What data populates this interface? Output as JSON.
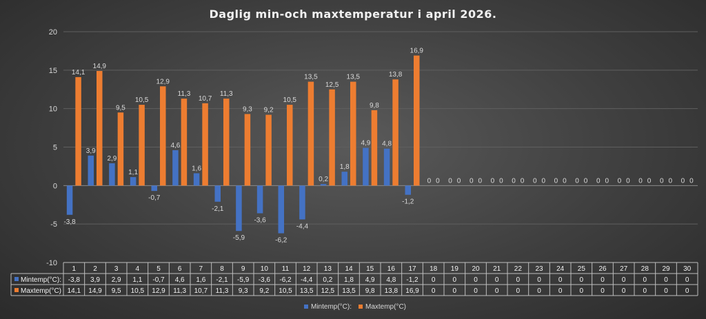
{
  "chart_data": {
    "type": "bar",
    "title": "Daglig min-och maxtemperatur i april 2026.",
    "categories": [
      "1",
      "2",
      "3",
      "4",
      "5",
      "6",
      "7",
      "8",
      "9",
      "10",
      "11",
      "12",
      "13",
      "14",
      "15",
      "16",
      "17",
      "18",
      "19",
      "20",
      "21",
      "22",
      "23",
      "24",
      "25",
      "26",
      "27",
      "28",
      "29",
      "30"
    ],
    "series": [
      {
        "name": "Mintemp(°C):",
        "color": "#4472c4",
        "values": [
          -3.8,
          3.9,
          2.9,
          1.1,
          -0.7,
          4.6,
          1.6,
          -2.1,
          -5.9,
          -3.6,
          -6.2,
          -4.4,
          0.2,
          1.8,
          4.9,
          4.8,
          -1.2,
          0,
          0,
          0,
          0,
          0,
          0,
          0,
          0,
          0,
          0,
          0,
          0,
          0
        ],
        "labels": [
          "-3,8",
          "3,9",
          "2,9",
          "1,1",
          "-0,7",
          "4,6",
          "1,6",
          "-2,1",
          "-5,9",
          "-3,6",
          "-6,2",
          "-4,4",
          "0,2",
          "1,8",
          "4,9",
          "4,8",
          "-1,2",
          "0",
          "0",
          "0",
          "0",
          "0",
          "0",
          "0",
          "0",
          "0",
          "0",
          "0",
          "0",
          "0"
        ]
      },
      {
        "name": "Maxtemp(°C)",
        "color": "#ed7d31",
        "values": [
          14.1,
          14.9,
          9.5,
          10.5,
          12.9,
          11.3,
          10.7,
          11.3,
          9.3,
          9.2,
          10.5,
          13.5,
          12.5,
          13.5,
          9.8,
          13.8,
          16.9,
          0,
          0,
          0,
          0,
          0,
          0,
          0,
          0,
          0,
          0,
          0,
          0,
          0
        ],
        "labels": [
          "14,1",
          "14,9",
          "9,5",
          "10,5",
          "12,9",
          "11,3",
          "10,7",
          "11,3",
          "9,3",
          "9,2",
          "10,5",
          "13,5",
          "12,5",
          "13,5",
          "9,8",
          "13,8",
          "16,9",
          "0",
          "0",
          "0",
          "0",
          "0",
          "0",
          "0",
          "0",
          "0",
          "0",
          "0",
          "0",
          "0"
        ]
      }
    ],
    "legend_labels": [
      "Mintemp(°C):",
      "Maxtemp(°C)"
    ],
    "ylim": [
      -10,
      20
    ],
    "yticks": [
      -10,
      -5,
      0,
      5,
      10,
      15,
      20
    ],
    "grid": true,
    "data_table": true,
    "legend_position": "bottom"
  }
}
